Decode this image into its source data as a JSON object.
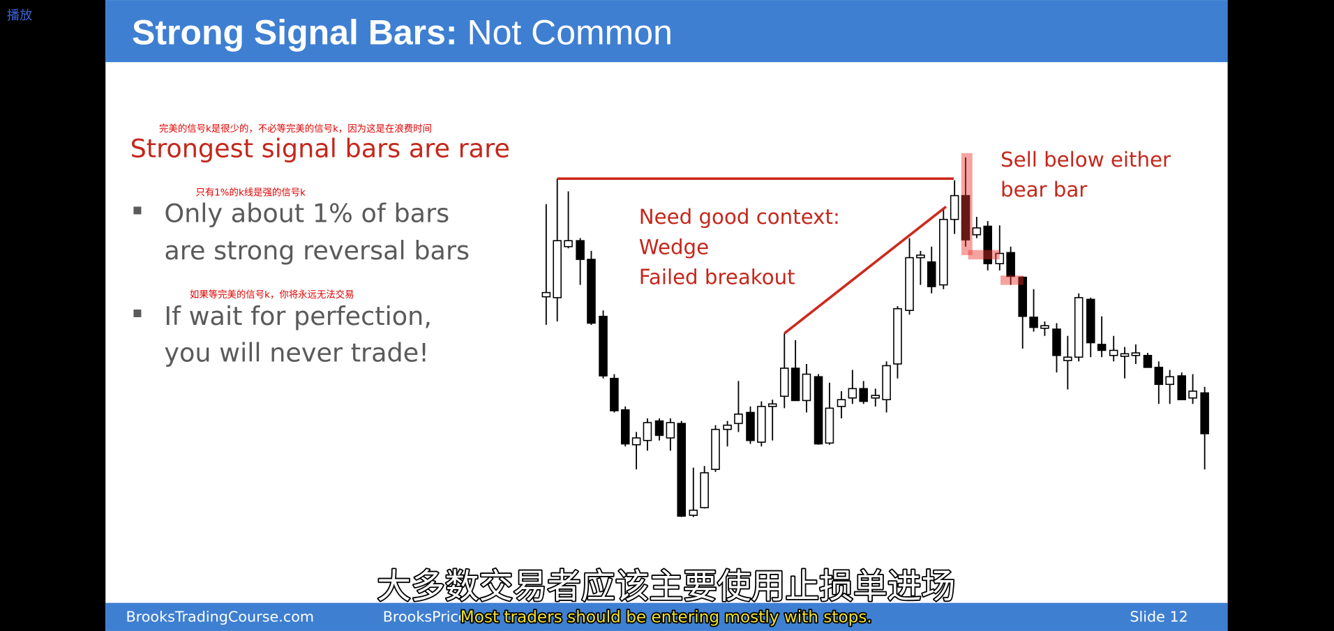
{
  "player": {
    "label": "播放"
  },
  "slide": {
    "title": {
      "bold": "Strong Signal Bars:",
      "rest": "Not Common"
    },
    "heading_note": "完美的信号k是很少的，不必等完美的信号k，因为这是在浪费时间",
    "heading": "Strongest signal bars are rare",
    "bullets": [
      {
        "note": "只有1%的k线是强的信号k",
        "lines": [
          "Only about 1% of bars",
          "are strong reversal bars"
        ]
      },
      {
        "note": "如果等完美的信号k，你将永远无法交易",
        "lines": [
          "If wait for perfection,",
          "you will never trade!"
        ]
      }
    ],
    "chart_annotations": {
      "context": [
        "Need good context:",
        "Wedge",
        "Failed breakout"
      ],
      "sell": [
        "Sell below either",
        "bear bar"
      ]
    },
    "footer": {
      "left": "BrooksTradingCourse.com",
      "middle": "BrooksPrice",
      "right": "Slide  12"
    }
  },
  "subtitles": {
    "zh": "大多数交易者应该主要使用止损单进场",
    "en": "Most traders should be entering mostly with stops."
  }
}
